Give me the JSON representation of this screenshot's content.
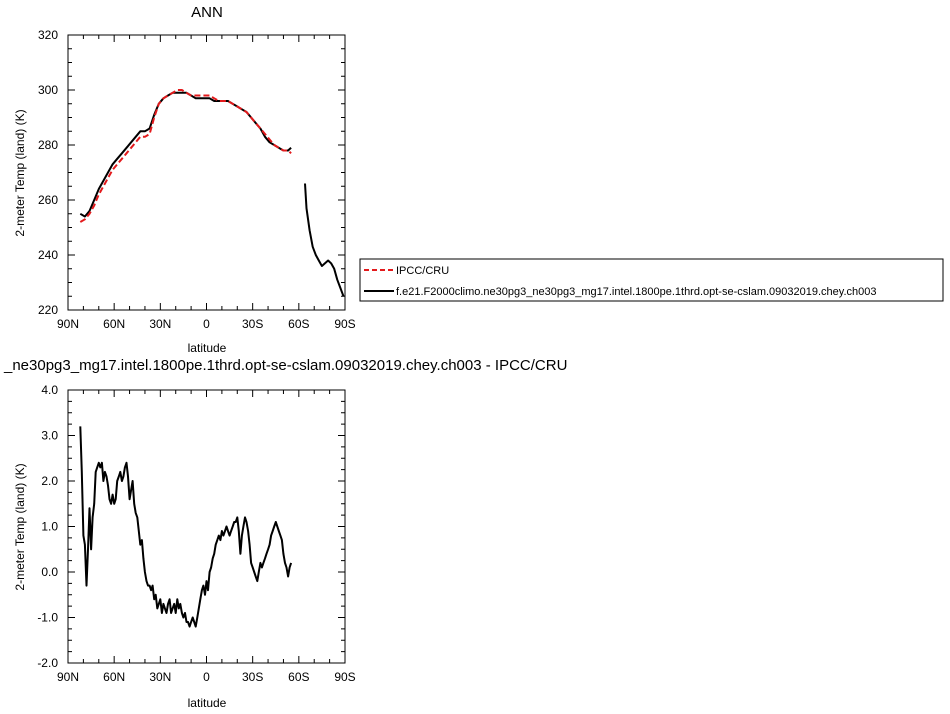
{
  "chart_data": [
    {
      "type": "line",
      "title": "ANN",
      "xlabel": "latitude",
      "ylabel": "2-meter Temp (land) (K)",
      "xlim": [
        -90,
        90
      ],
      "ylim": [
        220,
        320
      ],
      "xticks": [
        -90,
        -60,
        -30,
        0,
        30,
        60,
        90
      ],
      "xtick_labels": [
        "90N",
        "60N",
        "30N",
        "0",
        "30S",
        "60S",
        "90S"
      ],
      "yticks": [
        220,
        240,
        260,
        280,
        300,
        320
      ],
      "ytick_labels": [
        "220",
        "240",
        "260",
        "280",
        "300",
        "320"
      ],
      "legend_position": "right",
      "series": [
        {
          "name": "IPCC/CRU",
          "color": "#e31a1c",
          "dash": true,
          "x": [
            -82,
            -79,
            -76,
            -73,
            -70,
            -67,
            -64,
            -61,
            -58,
            -55,
            -52,
            -49,
            -46,
            -43,
            -40,
            -37,
            -34,
            -31,
            -28,
            -25,
            -22,
            -19,
            -16,
            -13,
            -10,
            -7,
            -4,
            -1,
            2,
            5,
            8,
            11,
            14,
            17,
            20,
            23,
            26,
            29,
            32,
            35,
            38,
            41,
            44,
            47,
            50,
            53,
            55
          ],
          "y": [
            252,
            253,
            255,
            258,
            262,
            265,
            268,
            271,
            273,
            275,
            277,
            279,
            281,
            283,
            283,
            284,
            290,
            295,
            297,
            298,
            299,
            300,
            300,
            299,
            298,
            298,
            298,
            298,
            298,
            297,
            296,
            296,
            296,
            295,
            294,
            293,
            292,
            290,
            288,
            286,
            284,
            282,
            280,
            279,
            278,
            278,
            277
          ]
        },
        {
          "name": "f.e21.F2000climo.ne30pg3_ne30pg3_mg17.intel.1800pe.1thrd.opt-se-cslam.09032019.chey.ch003",
          "color": "#000000",
          "dash": false,
          "x": [
            -82,
            -79,
            -76,
            -73,
            -70,
            -67,
            -64,
            -61,
            -58,
            -55,
            -52,
            -49,
            -46,
            -43,
            -40,
            -37,
            -34,
            -31,
            -28,
            -25,
            -22,
            -19,
            -16,
            -13,
            -10,
            -7,
            -4,
            -1,
            2,
            5,
            8,
            11,
            14,
            17,
            20,
            23,
            26,
            29,
            32,
            35,
            38,
            41,
            44,
            47,
            50,
            53,
            55,
            null,
            64,
            65,
            67,
            69,
            71,
            73,
            75,
            77,
            79,
            81,
            83,
            85,
            87,
            89
          ],
          "y": [
            255,
            254,
            256,
            260,
            264,
            267,
            270,
            273,
            275,
            277,
            279,
            281,
            283,
            285,
            285,
            286,
            291,
            295,
            297,
            298,
            299,
            299,
            299,
            299,
            298,
            297,
            297,
            297,
            297,
            296,
            296,
            296,
            296,
            295,
            294,
            293,
            292,
            290,
            288,
            286,
            283,
            281,
            280,
            279,
            278,
            278,
            279,
            null,
            266,
            257,
            249,
            243,
            240,
            238,
            236,
            237,
            238,
            237,
            235,
            231,
            228,
            225
          ]
        }
      ]
    },
    {
      "type": "line",
      "title": "_ne30pg3_mg17.intel.1800pe.1thrd.opt-se-cslam.09032019.chey.ch003 - IPCC/CRU",
      "xlabel": "latitude",
      "ylabel": "2-meter Temp (land) (K)",
      "xlim": [
        -90,
        90
      ],
      "ylim": [
        -2,
        4
      ],
      "xticks": [
        -90,
        -60,
        -30,
        0,
        30,
        60,
        90
      ],
      "xtick_labels": [
        "90N",
        "60N",
        "30N",
        "0",
        "30S",
        "60S",
        "90S"
      ],
      "yticks": [
        -2,
        -1,
        0,
        1,
        2,
        3,
        4
      ],
      "ytick_labels": [
        "-2.0",
        "-1.0",
        "0.0",
        "1.0",
        "2.0",
        "3.0",
        "4.0"
      ],
      "series": [
        {
          "color": "#000000",
          "dash": false,
          "x": [
            -82,
            -81,
            -80,
            -79,
            -78,
            -77,
            -76,
            -75,
            -74,
            -73,
            -72,
            -71,
            -70,
            -69,
            -68,
            -67,
            -66,
            -65,
            -64,
            -63,
            -62,
            -61,
            -60,
            -59,
            -58,
            -57,
            -56,
            -55,
            -54,
            -53,
            -52,
            -51,
            -50,
            -49,
            -48,
            -47,
            -46,
            -45,
            -44,
            -43,
            -42,
            -41,
            -40,
            -39,
            -38,
            -37,
            -36,
            -35,
            -34,
            -33,
            -32,
            -31,
            -30,
            -29,
            -28,
            -27,
            -26,
            -25,
            -24,
            -23,
            -22,
            -21,
            -20,
            -19,
            -18,
            -17,
            -16,
            -15,
            -14,
            -13,
            -12,
            -11,
            -10,
            -9,
            -8,
            -7,
            -6,
            -5,
            -4,
            -3,
            -2,
            -1,
            0,
            1,
            2,
            3,
            4,
            5,
            6,
            7,
            8,
            9,
            10,
            11,
            12,
            13,
            14,
            15,
            16,
            17,
            18,
            19,
            20,
            21,
            22,
            23,
            24,
            25,
            26,
            27,
            28,
            29,
            30,
            31,
            32,
            33,
            34,
            35,
            36,
            37,
            38,
            39,
            40,
            41,
            42,
            43,
            44,
            45,
            46,
            47,
            48,
            49,
            50,
            51,
            52,
            53,
            54,
            55
          ],
          "y": [
            3.2,
            2.2,
            0.8,
            0.6,
            -0.3,
            0.5,
            1.4,
            0.5,
            1.2,
            1.5,
            2.2,
            2.3,
            2.4,
            2.3,
            2.4,
            2.0,
            2.2,
            2.1,
            1.9,
            1.6,
            1.5,
            1.7,
            1.5,
            1.6,
            2.0,
            2.1,
            2.2,
            2.0,
            2.1,
            2.3,
            2.4,
            2.1,
            1.6,
            1.8,
            2.0,
            1.5,
            1.3,
            1.2,
            0.9,
            0.6,
            0.7,
            0.3,
            0.0,
            -0.2,
            -0.3,
            -0.3,
            -0.4,
            -0.3,
            -0.6,
            -0.5,
            -0.8,
            -0.7,
            -0.6,
            -0.9,
            -0.7,
            -0.8,
            -0.9,
            -0.7,
            -0.6,
            -0.9,
            -0.8,
            -0.7,
            -0.9,
            -0.6,
            -0.8,
            -0.7,
            -0.9,
            -1.0,
            -0.9,
            -1.1,
            -1.1,
            -1.2,
            -1.1,
            -1.0,
            -1.1,
            -1.2,
            -1.0,
            -0.8,
            -0.6,
            -0.4,
            -0.3,
            -0.5,
            -0.2,
            -0.4,
            0.0,
            0.1,
            0.3,
            0.4,
            0.6,
            0.7,
            0.8,
            0.7,
            0.9,
            0.8,
            0.9,
            1.0,
            0.9,
            0.8,
            0.9,
            1.0,
            1.1,
            1.1,
            1.2,
            0.9,
            0.4,
            0.8,
            1.0,
            1.2,
            1.1,
            0.9,
            0.6,
            0.2,
            0.1,
            0.0,
            -0.1,
            -0.2,
            0.0,
            0.2,
            0.1,
            0.2,
            0.3,
            0.4,
            0.5,
            0.6,
            0.8,
            0.9,
            1.0,
            1.1,
            1.0,
            0.9,
            0.8,
            0.7,
            0.4,
            0.2,
            0.1,
            -0.1,
            0.1,
            0.2
          ]
        }
      ]
    }
  ]
}
